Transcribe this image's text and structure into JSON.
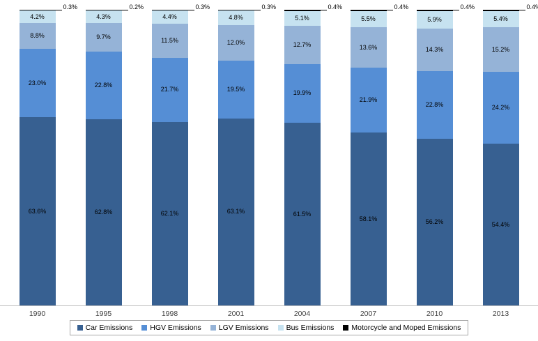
{
  "chart_data": {
    "type": "bar",
    "stacked": true,
    "percent_stacked": true,
    "title": "",
    "xlabel": "",
    "ylabel": "",
    "ylim": [
      0,
      100
    ],
    "grid": false,
    "legend_position": "bottom",
    "value_labels": true,
    "value_label_format": "0.0%",
    "categories": [
      "1990",
      "1995",
      "1998",
      "2001",
      "2004",
      "2007",
      "2010",
      "2013"
    ],
    "series": [
      {
        "name": "Car Emissions",
        "color": "#376091",
        "values": [
          63.6,
          62.8,
          62.1,
          63.1,
          61.5,
          58.1,
          56.2,
          54.4
        ]
      },
      {
        "name": "HGV Emissions",
        "color": "#558ED5",
        "values": [
          23.0,
          22.8,
          21.7,
          19.5,
          19.9,
          21.9,
          22.8,
          24.2
        ]
      },
      {
        "name": "LGV Emissions",
        "color": "#95B3D7",
        "values": [
          8.8,
          9.7,
          11.5,
          12.0,
          12.7,
          13.6,
          14.3,
          15.2
        ]
      },
      {
        "name": "Bus Emissions",
        "color": "#C6E2F0",
        "values": [
          4.2,
          4.3,
          4.4,
          4.8,
          5.1,
          5.5,
          5.9,
          5.4
        ]
      },
      {
        "name": "Motorcycle and Moped Emissions",
        "color": "#000000",
        "values": [
          0.3,
          0.2,
          0.3,
          0.3,
          0.4,
          0.4,
          0.4,
          0.4
        ]
      }
    ],
    "callout_series": "Motorcycle and Moped Emissions",
    "axis_line_color": "#BFBFBF"
  }
}
